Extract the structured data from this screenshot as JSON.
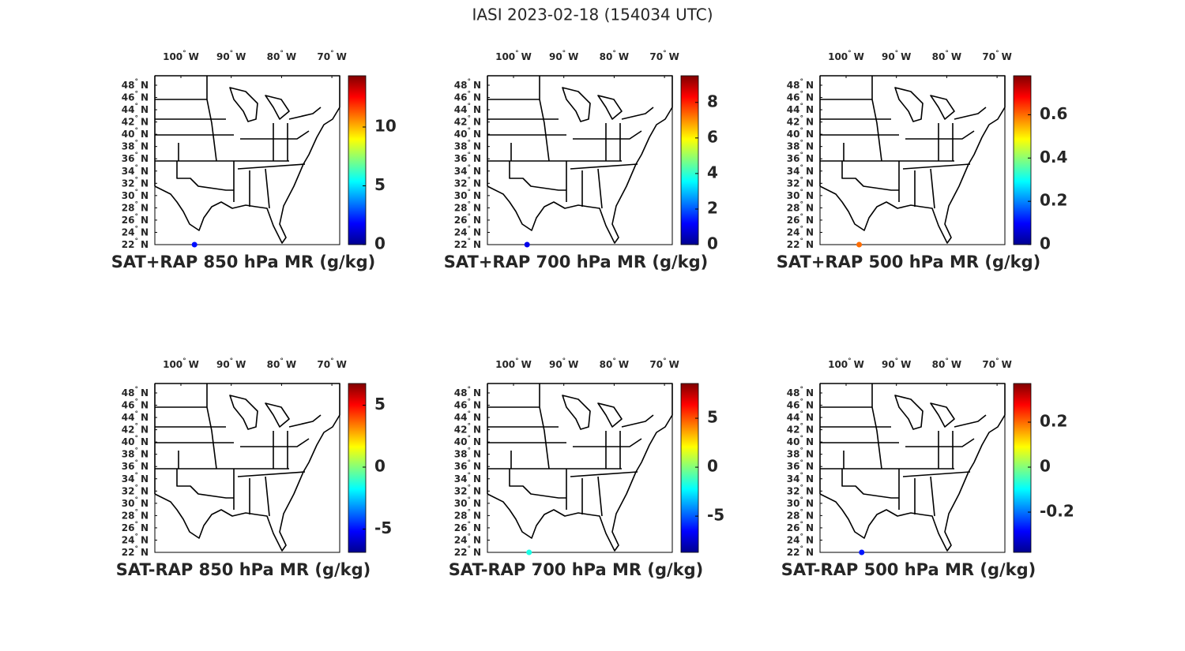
{
  "title": "IASI 2023-02-18 (154034 UTC)",
  "degree": "°",
  "lon_suffix": "W",
  "lat_suffix": "N",
  "lon_ticks": [
    100,
    90,
    80,
    70
  ],
  "lat_ticks": [
    48,
    46,
    44,
    42,
    40,
    38,
    36,
    34,
    32,
    30,
    28,
    26,
    24,
    22
  ],
  "panels": [
    {
      "title": "SAT+RAP 850 hPa MR (g/kg)",
      "clim": [
        0,
        14.36
      ],
      "cticks": [
        0,
        5,
        10
      ],
      "points": [
        {
          "lon": 97.3,
          "lat": 22,
          "value": 2
        }
      ]
    },
    {
      "title": "SAT+RAP 700 hPa MR (g/kg)",
      "clim": [
        0,
        9.5
      ],
      "cticks": [
        0,
        2,
        4,
        6,
        8
      ],
      "points": [
        {
          "lon": 97.3,
          "lat": 22,
          "value": 1
        }
      ]
    },
    {
      "title": "SAT+RAP 500 hPa MR (g/kg)",
      "clim": [
        0,
        0.78
      ],
      "cticks": [
        0,
        0.2,
        0.4,
        0.6
      ],
      "points": [
        {
          "lon": 97.4,
          "lat": 22,
          "value": 0.6
        }
      ]
    },
    {
      "title": "SAT-RAP 850 hPa MR (g/kg)",
      "clim": [
        -6.88,
        6.75
      ],
      "cticks": [
        -5,
        0,
        5
      ],
      "points": []
    },
    {
      "title": "SAT-RAP 700 hPa MR (g/kg)",
      "clim": [
        -8.7,
        8.55
      ],
      "cticks": [
        -5,
        0,
        5
      ],
      "points": [
        {
          "lon": 96.9,
          "lat": 22,
          "value": -1.8
        }
      ]
    },
    {
      "title": "SAT-RAP 500 hPa MR (g/kg)",
      "clim": [
        -0.379,
        0.372
      ],
      "cticks": [
        -0.2,
        0,
        0.2
      ],
      "points": [
        {
          "lon": 96.9,
          "lat": 22,
          "value": -0.27
        }
      ]
    }
  ]
}
